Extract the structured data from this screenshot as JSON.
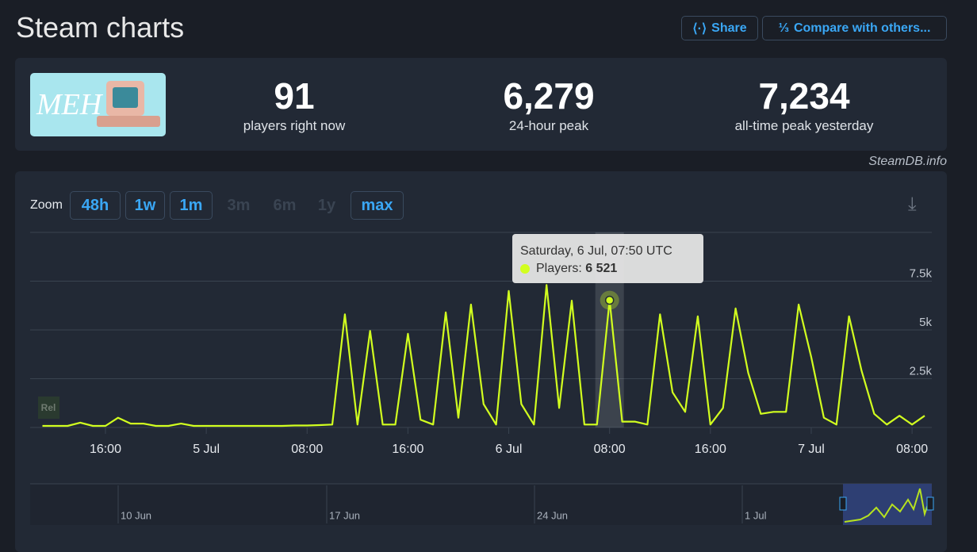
{
  "header": {
    "title": "Steam charts",
    "share": "Share",
    "compare": "Compare with others..."
  },
  "logo_text": "MEH",
  "stats": [
    {
      "value": "91",
      "label": "players right now"
    },
    {
      "value": "6,279",
      "label": "24-hour peak"
    },
    {
      "value": "7,234",
      "label": "all-time peak yesterday"
    }
  ],
  "source": "SteamDB.info",
  "zoom": {
    "label": "Zoom",
    "options": [
      {
        "label": "48h",
        "enabled": true
      },
      {
        "label": "1w",
        "enabled": true
      },
      {
        "label": "1m",
        "enabled": true
      },
      {
        "label": "3m",
        "enabled": false
      },
      {
        "label": "6m",
        "enabled": false
      },
      {
        "label": "1y",
        "enabled": false
      },
      {
        "label": "max",
        "enabled": true
      }
    ]
  },
  "rel": "Rel",
  "chart_data": {
    "type": "line",
    "color": "#d2ff1f",
    "grid": true,
    "categories": [
      null,
      null,
      null,
      null,
      null,
      "16:00",
      null,
      null,
      null,
      null,
      null,
      null,
      null,
      "5 Jul",
      null,
      null,
      null,
      null,
      null,
      null,
      null,
      "08:00",
      null,
      null,
      null,
      null,
      null,
      null,
      null,
      "16:00",
      null,
      null,
      null,
      null,
      null,
      null,
      null,
      "6 Jul",
      null,
      null,
      null,
      null,
      null,
      null,
      null,
      "08:00",
      null,
      null,
      null,
      null,
      null,
      null,
      null,
      "16:00",
      null,
      null,
      null,
      null,
      null,
      null,
      null,
      "7 Jul",
      null,
      null,
      null,
      null,
      null,
      null,
      null,
      "08:00",
      null
    ],
    "values": [
      80,
      80,
      80,
      250,
      80,
      80,
      500,
      200,
      200,
      80,
      80,
      200,
      80,
      80,
      80,
      80,
      80,
      80,
      80,
      80,
      100,
      100,
      120,
      150,
      5800,
      150,
      4950,
      150,
      150,
      4800,
      400,
      150,
      5900,
      500,
      6300,
      1200,
      150,
      7000,
      1200,
      150,
      7300,
      1000,
      6500,
      150,
      150,
      6521,
      300,
      300,
      150,
      5800,
      1800,
      800,
      5700,
      150,
      1000,
      6100,
      2800,
      700,
      800,
      800,
      6300,
      3600,
      500,
      150,
      5700,
      2900,
      700,
      150,
      600,
      150,
      600
    ],
    "ylim": [
      0,
      10000
    ],
    "yticks": [
      {
        "value": 2500,
        "label": "2.5k"
      },
      {
        "value": 5000,
        "label": "5k"
      },
      {
        "value": 7500,
        "label": "7.5k"
      }
    ],
    "highlight_index": 45,
    "tooltip": {
      "date": "Saturday, 6 Jul, 07:50 UTC",
      "label": "Players:",
      "value": "6 521"
    }
  },
  "navigator": {
    "labels": [
      "10 Jun",
      "17 Jun",
      "24 Jun",
      "1 Jul"
    ]
  }
}
